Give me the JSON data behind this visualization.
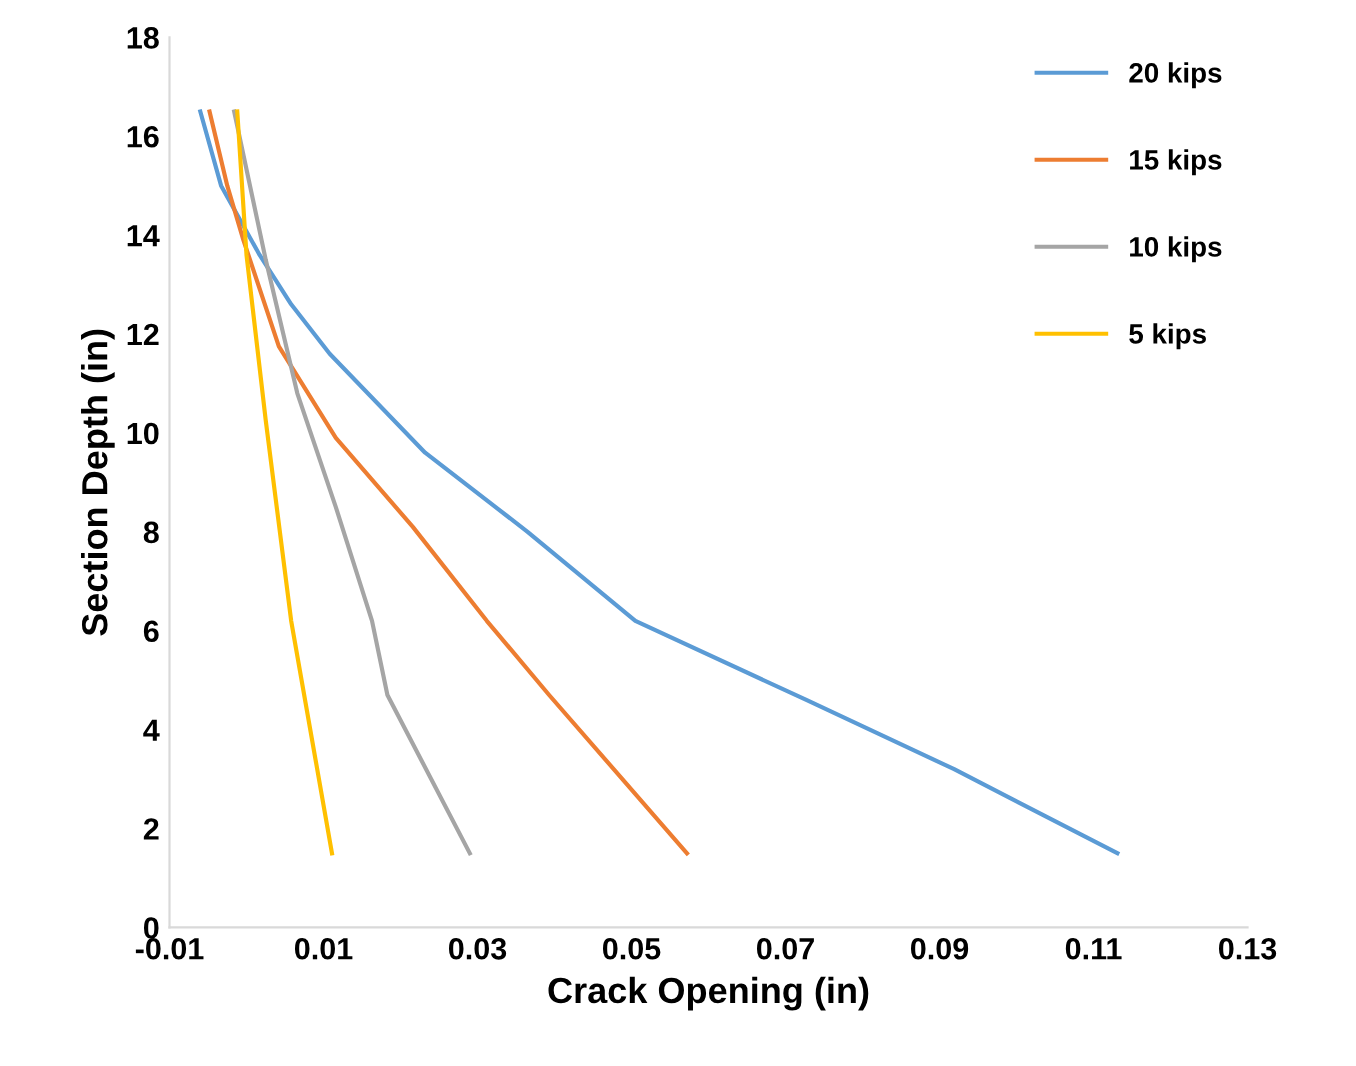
{
  "chart_data": {
    "type": "line",
    "xlabel": "Crack Opening (in)",
    "ylabel": "Section Depth (in)",
    "xlim": [
      -0.01,
      0.13
    ],
    "xticks": [
      -0.01,
      0.01,
      0.03,
      0.05,
      0.07,
      0.09,
      0.11,
      0.13
    ],
    "ylim": [
      0,
      18
    ],
    "yticks": [
      0,
      2,
      4,
      6,
      8,
      10,
      12,
      14,
      16,
      18
    ],
    "grid": false,
    "legend": "top right",
    "marker": "none",
    "line_style": "solid",
    "series": [
      {
        "name": "20 kips",
        "color": "#5b9bd5",
        "x": [
          -0.006,
          -0.0033,
          0.0017,
          0.0058,
          0.0108,
          0.0232,
          0.0365,
          0.0505,
          0.0727,
          0.0919,
          0.1131
        ],
        "values": [
          16.5,
          15.0,
          13.6,
          12.6,
          11.6,
          9.6,
          8.0,
          6.2,
          4.6,
          3.2,
          1.5
        ]
      },
      {
        "name": "15 kips",
        "color": "#ed7d31",
        "x": [
          -0.0048,
          -0.0025,
          -0.0004,
          0.0042,
          0.0116,
          0.0216,
          0.0312,
          0.0393,
          0.0572
        ],
        "values": [
          16.5,
          15.0,
          13.9,
          11.75,
          9.9,
          8.1,
          6.2,
          4.7,
          1.5
        ]
      },
      {
        "name": "10 kips",
        "color": "#a5a5a5",
        "x": [
          -0.0016,
          0.0025,
          0.0066,
          0.0116,
          0.0163,
          0.0183,
          0.029
        ],
        "values": [
          16.5,
          13.5,
          10.8,
          8.5,
          6.2,
          4.7,
          1.5
        ]
      },
      {
        "name": "5 kips",
        "color": "#ffc000",
        "x": [
          -0.0012,
          0.0,
          0.0025,
          0.0058,
          0.0111
        ],
        "values": [
          16.5,
          13.6,
          10.25,
          6.2,
          1.5
        ]
      }
    ]
  }
}
